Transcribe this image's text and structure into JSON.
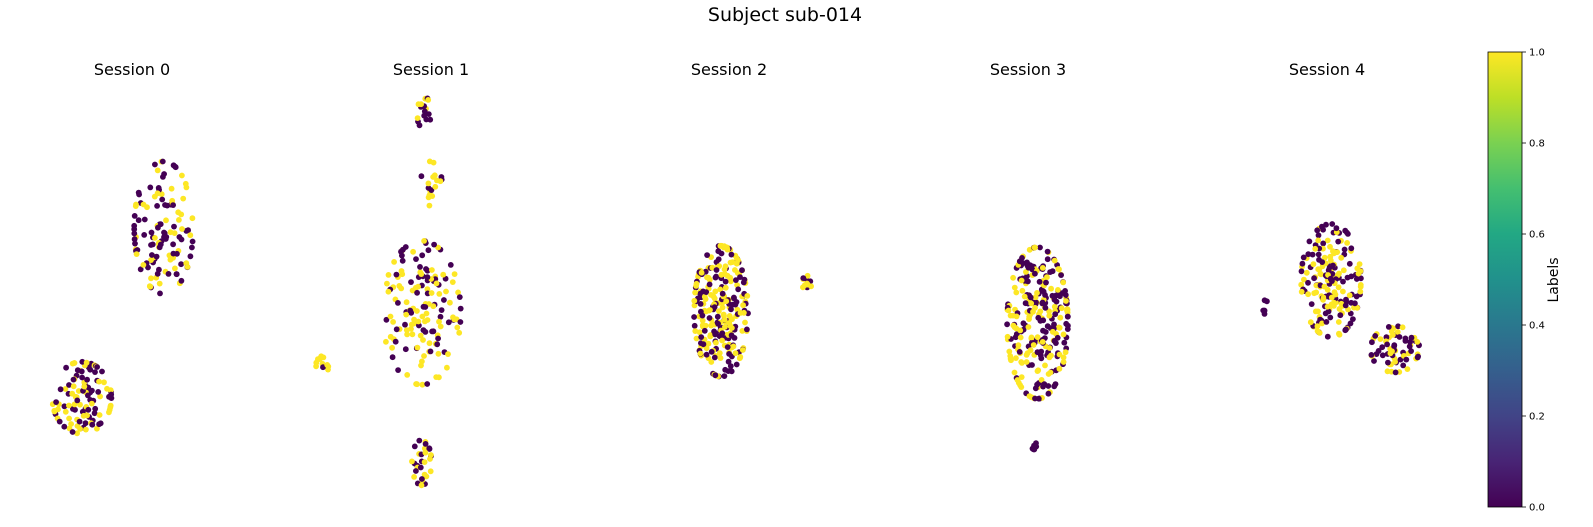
{
  "title": "Subject sub-014",
  "colorbar": {
    "label": "Labels",
    "min": 0.0,
    "max": 1.0,
    "ticks": [
      "0.0",
      "0.2",
      "0.4",
      "0.6",
      "0.8",
      "1.0"
    ],
    "colormap": "viridis",
    "colors": {
      "low": "#440154",
      "high": "#fde725"
    }
  },
  "chart_data": [
    {
      "type": "scatter",
      "title": "Session 0",
      "axes_visible": false,
      "xlim": [
        0,
        10
      ],
      "ylim": [
        0,
        10
      ],
      "clusters": [
        {
          "cx": 5.8,
          "cy": 6.6,
          "sx": 1.35,
          "sy": 1.75,
          "n": 125,
          "yellow_frac": 0.45
        },
        {
          "cx": 2.3,
          "cy": 2.4,
          "sx": 1.35,
          "sy": 0.95,
          "n": 110,
          "yellow_frac": 0.5
        }
      ]
    },
    {
      "type": "scatter",
      "title": "Session 1",
      "axes_visible": false,
      "xlim": [
        0,
        10
      ],
      "ylim": [
        0,
        10
      ],
      "clusters": [
        {
          "cx": 5.0,
          "cy": 9.4,
          "sx": 0.3,
          "sy": 0.5,
          "n": 16,
          "yellow_frac": 0.45
        },
        {
          "cx": 5.3,
          "cy": 7.7,
          "sx": 0.5,
          "sy": 0.6,
          "n": 18,
          "yellow_frac": 0.65
        },
        {
          "cx": 4.9,
          "cy": 4.5,
          "sx": 1.8,
          "sy": 1.9,
          "n": 150,
          "yellow_frac": 0.5
        },
        {
          "cx": 0.6,
          "cy": 3.2,
          "sx": 0.3,
          "sy": 0.3,
          "n": 12,
          "yellow_frac": 0.8
        },
        {
          "cx": 4.9,
          "cy": 0.8,
          "sx": 0.45,
          "sy": 0.6,
          "n": 30,
          "yellow_frac": 0.4
        }
      ]
    },
    {
      "type": "scatter",
      "title": "Session 2",
      "axes_visible": false,
      "xlim": [
        0,
        10
      ],
      "ylim": [
        0,
        10
      ],
      "clusters": [
        {
          "cx": 4.0,
          "cy": 4.6,
          "sx": 1.75,
          "sy": 2.5,
          "n": 260,
          "yellow_frac": 0.5
        },
        {
          "cx": 9.2,
          "cy": 5.6,
          "sx": 0.3,
          "sy": 0.3,
          "n": 11,
          "yellow_frac": 0.7
        }
      ]
    },
    {
      "type": "scatter",
      "title": "Session 3",
      "axes_visible": false,
      "xlim": [
        0,
        10
      ],
      "ylim": [
        0,
        10
      ],
      "clusters": [
        {
          "cx": 5.0,
          "cy": 4.9,
          "sx": 2.1,
          "sy": 2.7,
          "n": 280,
          "yellow_frac": 0.5
        },
        {
          "cx": 4.8,
          "cy": 0.8,
          "sx": 0.2,
          "sy": 0.2,
          "n": 7,
          "yellow_frac": 0.0
        }
      ]
    },
    {
      "type": "scatter",
      "title": "Session 4",
      "axes_visible": false,
      "xlim": [
        0,
        10
      ],
      "ylim": [
        0,
        10
      ],
      "clusters": [
        {
          "cx": 4.3,
          "cy": 5.8,
          "sx": 1.6,
          "sy": 2.2,
          "n": 185,
          "yellow_frac": 0.5
        },
        {
          "cx": 7.5,
          "cy": 3.3,
          "sx": 1.3,
          "sy": 0.9,
          "n": 70,
          "yellow_frac": 0.45
        },
        {
          "cx": 1.0,
          "cy": 4.8,
          "sx": 0.2,
          "sy": 0.3,
          "n": 6,
          "yellow_frac": 0.0
        }
      ]
    }
  ]
}
